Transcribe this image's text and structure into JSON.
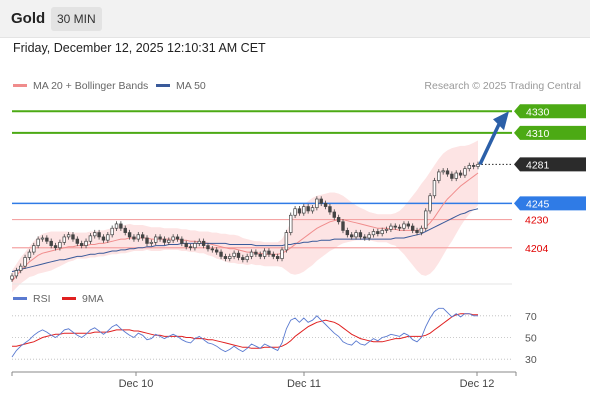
{
  "header": {
    "instrument": "Gold",
    "timeframe": "30 MIN"
  },
  "datetime": "Friday, December 12, 2025 12:10:31 AM CET",
  "legend": {
    "ma20_label": "MA 20 + Bollinger Bands",
    "ma50_label": "MA 50",
    "credit": "Research © 2025 Trading Central",
    "rsi_label": "RSI",
    "ma9_label": "9MA"
  },
  "colors": {
    "green_level": "#4caa14",
    "blue_level": "#2f7be6",
    "red_level": "#e00000",
    "current_price": "#2b2b2b",
    "ma20": "#f08c8c",
    "ma50": "#3a5a9a",
    "bollinger_fill": "#fde4e4",
    "arrow": "#2b5fa8",
    "rsi_line": "#5a7ad0",
    "rsi_ma": "#e02020",
    "candle": "#444444"
  },
  "chart_data": [
    {
      "type": "candlestick",
      "title": "Gold",
      "x_ticks": [
        "Dec 10",
        "Dec 11",
        "Dec 12"
      ],
      "ylim": [
        4165,
        4345
      ],
      "horizontal_levels": [
        {
          "value": 4330,
          "label": "4330",
          "kind": "resistance"
        },
        {
          "value": 4310,
          "label": "4310",
          "kind": "resistance"
        },
        {
          "value": 4281,
          "label": "4281",
          "kind": "current"
        },
        {
          "value": 4245,
          "label": "4245",
          "kind": "pivot"
        },
        {
          "value": 4230,
          "label": "4230",
          "kind": "support"
        },
        {
          "value": 4204,
          "label": "4204",
          "kind": "support"
        }
      ],
      "close": [
        4178,
        4183,
        4187,
        4195,
        4200,
        4206,
        4212,
        4213,
        4210,
        4206,
        4204,
        4209,
        4214,
        4216,
        4212,
        4208,
        4206,
        4210,
        4215,
        4218,
        4214,
        4211,
        4216,
        4222,
        4226,
        4222,
        4218,
        4214,
        4212,
        4216,
        4213,
        4208,
        4209,
        4214,
        4212,
        4209,
        4211,
        4214,
        4212,
        4208,
        4205,
        4204,
        4208,
        4210,
        4206,
        4203,
        4202,
        4200,
        4196,
        4194,
        4196,
        4199,
        4195,
        4193,
        4196,
        4200,
        4198,
        4196,
        4201,
        4198,
        4196,
        4194,
        4202,
        4218,
        4234,
        4240,
        4236,
        4242,
        4238,
        4241,
        4249,
        4245,
        4242,
        4237,
        4232,
        4228,
        4220,
        4216,
        4214,
        4218,
        4214,
        4213,
        4216,
        4219,
        4217,
        4220,
        4221,
        4224,
        4223,
        4222,
        4226,
        4224,
        4220,
        4218,
        4222,
        4238,
        4252,
        4266,
        4274,
        4275,
        4272,
        4268,
        4273,
        4271,
        4277,
        4280,
        4279,
        4281
      ],
      "ma20": [
        4173,
        4178,
        4183,
        4187,
        4191,
        4194,
        4197,
        4199,
        4200,
        4201,
        4202,
        4203,
        4204,
        4205,
        4205,
        4206,
        4206,
        4206,
        4207,
        4207,
        4208,
        4208,
        4209,
        4210,
        4211,
        4212,
        4212,
        4213,
        4213,
        4213,
        4213,
        4213,
        4212,
        4212,
        4212,
        4212,
        4212,
        4212,
        4212,
        4211,
        4211,
        4210,
        4210,
        4209,
        4209,
        4208,
        4207,
        4206,
        4205,
        4204,
        4203,
        4203,
        4202,
        4201,
        4200,
        4200,
        4199,
        4199,
        4198,
        4198,
        4198,
        4198,
        4199,
        4201,
        4204,
        4207,
        4210,
        4213,
        4216,
        4219,
        4222,
        4224,
        4226,
        4228,
        4229,
        4230,
        4230,
        4229,
        4228,
        4227,
        4226,
        4225,
        4224,
        4223,
        4222,
        4222,
        4222,
        4221,
        4221,
        4220,
        4220,
        4220,
        4220,
        4220,
        4221,
        4223,
        4227,
        4232,
        4238,
        4244,
        4249,
        4253,
        4257,
        4261,
        4264,
        4267,
        4270,
        4273
      ],
      "ma50": [
        4182,
        4183,
        4184,
        4185,
        4186,
        4187,
        4188,
        4189,
        4190,
        4191,
        4192,
        4193,
        4193,
        4194,
        4195,
        4196,
        4196,
        4197,
        4198,
        4198,
        4199,
        4199,
        4200,
        4201,
        4201,
        4202,
        4202,
        4203,
        4203,
        4204,
        4204,
        4205,
        4205,
        4206,
        4206,
        4206,
        4207,
        4207,
        4207,
        4208,
        4208,
        4208,
        4208,
        4208,
        4208,
        4208,
        4208,
        4208,
        4208,
        4208,
        4207,
        4207,
        4207,
        4207,
        4207,
        4207,
        4206,
        4206,
        4206,
        4206,
        4206,
        4206,
        4206,
        4207,
        4207,
        4208,
        4208,
        4209,
        4209,
        4210,
        4210,
        4211,
        4211,
        4211,
        4212,
        4212,
        4212,
        4212,
        4212,
        4212,
        4212,
        4212,
        4212,
        4212,
        4212,
        4212,
        4212,
        4212,
        4213,
        4213,
        4213,
        4214,
        4215,
        4216,
        4217,
        4219,
        4221,
        4223,
        4225,
        4227,
        4229,
        4231,
        4233,
        4235,
        4236,
        4238,
        4239,
        4240
      ],
      "bollinger_width": [
        10,
        11,
        12,
        13,
        14,
        16,
        17,
        18,
        18,
        18,
        17,
        16,
        15,
        14,
        13,
        12,
        12,
        12,
        12,
        12,
        12,
        12,
        12,
        12,
        13,
        13,
        13,
        13,
        12,
        12,
        12,
        11,
        11,
        11,
        11,
        10,
        10,
        10,
        10,
        10,
        10,
        10,
        10,
        10,
        10,
        11,
        11,
        12,
        12,
        13,
        13,
        13,
        13,
        12,
        12,
        11,
        11,
        11,
        11,
        11,
        11,
        11,
        13,
        18,
        24,
        28,
        30,
        31,
        31,
        31,
        30,
        29,
        28,
        27,
        26,
        24,
        22,
        20,
        18,
        16,
        15,
        14,
        13,
        13,
        13,
        13,
        13,
        14,
        15,
        18,
        22,
        27,
        32,
        37,
        42,
        45,
        47,
        48,
        48,
        47,
        45,
        43,
        40,
        37,
        34,
        32,
        31,
        30
      ],
      "forecast_arrow": {
        "from": 4281,
        "to": 4330
      }
    },
    {
      "type": "line",
      "title": "RSI",
      "ylim": [
        20,
        80
      ],
      "y_ticks": [
        70,
        50,
        30
      ],
      "series": [
        {
          "name": "RSI",
          "values": [
            32,
            38,
            42,
            45,
            48,
            52,
            55,
            57,
            55,
            52,
            50,
            53,
            57,
            58,
            55,
            52,
            50,
            53,
            57,
            59,
            56,
            53,
            56,
            60,
            62,
            58,
            55,
            52,
            50,
            54,
            52,
            48,
            49,
            53,
            51,
            49,
            51,
            53,
            51,
            48,
            46,
            45,
            49,
            51,
            48,
            45,
            44,
            42,
            39,
            37,
            39,
            42,
            39,
            37,
            40,
            44,
            42,
            40,
            44,
            42,
            40,
            38,
            45,
            58,
            66,
            68,
            64,
            68,
            64,
            66,
            70,
            66,
            62,
            58,
            54,
            51,
            46,
            44,
            43,
            47,
            44,
            43,
            46,
            49,
            47,
            50,
            51,
            53,
            52,
            51,
            54,
            52,
            48,
            46,
            50,
            60,
            68,
            74,
            77,
            77,
            73,
            69,
            72,
            69,
            72,
            72,
            70,
            70
          ]
        },
        {
          "name": "9MA",
          "values": [
            42,
            42,
            43,
            44,
            45,
            46,
            48,
            50,
            51,
            52,
            53,
            53,
            54,
            54,
            54,
            54,
            54,
            54,
            54,
            55,
            55,
            55,
            55,
            56,
            57,
            57,
            57,
            57,
            56,
            56,
            55,
            54,
            53,
            52,
            52,
            51,
            51,
            51,
            51,
            51,
            50,
            50,
            49,
            49,
            49,
            48,
            48,
            47,
            46,
            45,
            44,
            43,
            42,
            41,
            41,
            40,
            40,
            40,
            41,
            41,
            41,
            41,
            42,
            44,
            47,
            51,
            54,
            57,
            60,
            62,
            64,
            65,
            66,
            65,
            64,
            62,
            59,
            56,
            53,
            51,
            49,
            48,
            47,
            46,
            46,
            46,
            47,
            48,
            49,
            49,
            50,
            51,
            51,
            51,
            51,
            52,
            54,
            57,
            60,
            63,
            66,
            69,
            71,
            72,
            72,
            72,
            71,
            71
          ]
        }
      ]
    }
  ]
}
